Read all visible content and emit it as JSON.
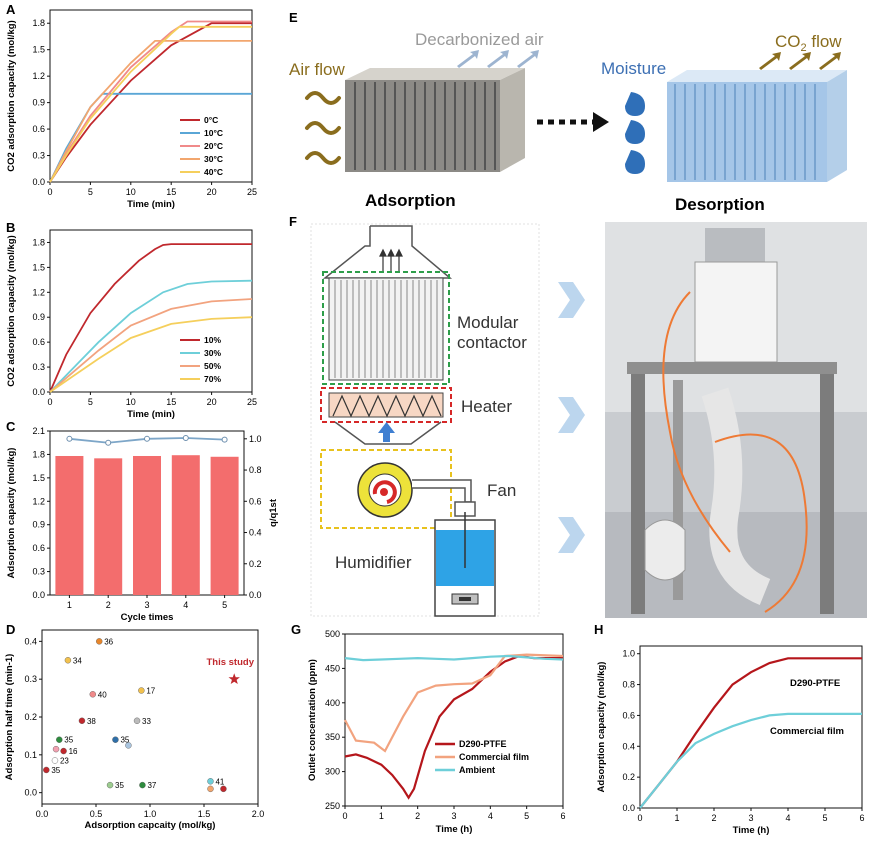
{
  "panel_labels": {
    "A": "A",
    "B": "B",
    "C": "C",
    "D": "D",
    "E": "E",
    "F": "F",
    "G": "G",
    "H": "H"
  },
  "colors": {
    "red": "#c0282d",
    "blue": "#5aa6d6",
    "pink": "#f08a8a",
    "orange": "#f2a66e",
    "yellow": "#f5cf5c",
    "cyan": "#6ecfd9",
    "bar": "#f36d6d",
    "line": "#7da6c8",
    "darkred": "#b5161b",
    "salmon": "#f2a37f"
  },
  "panelE": {
    "airflow": "Air flow",
    "decarbonized": "Decarbonized air",
    "moisture": "Moisture",
    "co2flow_prefix": "CO",
    "co2flow_sub": "2",
    "co2flow_suffix": " flow",
    "adsorption": "Adsorption",
    "desorption": "Desorption"
  },
  "panelF": {
    "modular": "Modular",
    "contactor": "contactor",
    "heater": "Heater",
    "fan": "Fan",
    "humidifier": "Humidifier"
  },
  "chart_data": [
    {
      "id": "A",
      "type": "line",
      "xlabel": "Time (min)",
      "ylabel": "CO2 adsorption capacity (mol/kg)",
      "xlim": [
        0,
        25
      ],
      "ylim": [
        0,
        1.95
      ],
      "xticks": [
        0,
        5,
        10,
        15,
        20,
        25
      ],
      "yticks": [
        0.0,
        0.3,
        0.6,
        0.9,
        1.2,
        1.5,
        1.8
      ],
      "series": [
        {
          "name": "0°C",
          "color": "#c0282d",
          "x": [
            0,
            2,
            5,
            10,
            15,
            20,
            25
          ],
          "y": [
            0,
            0.28,
            0.65,
            1.15,
            1.55,
            1.8,
            1.8
          ]
        },
        {
          "name": "10°C",
          "color": "#5aa6d6",
          "x": [
            0,
            2,
            5,
            6.5,
            25
          ],
          "y": [
            0,
            0.38,
            0.85,
            1.0,
            1.0
          ]
        },
        {
          "name": "20°C",
          "color": "#f08a8a",
          "x": [
            0,
            2,
            5,
            10,
            15,
            17,
            25
          ],
          "y": [
            0,
            0.32,
            0.75,
            1.3,
            1.7,
            1.82,
            1.82
          ]
        },
        {
          "name": "30°C",
          "color": "#f2a66e",
          "x": [
            0,
            2,
            5,
            10,
            13,
            25
          ],
          "y": [
            0,
            0.35,
            0.85,
            1.35,
            1.6,
            1.6
          ]
        },
        {
          "name": "40°C",
          "color": "#f5cf5c",
          "x": [
            0,
            2,
            5,
            10,
            15,
            16,
            25
          ],
          "y": [
            0,
            0.3,
            0.72,
            1.25,
            1.68,
            1.76,
            1.76
          ]
        }
      ]
    },
    {
      "id": "B",
      "type": "line",
      "xlabel": "Time (min)",
      "ylabel": "CO2 adsorption capacity (mol/kg)",
      "xlim": [
        0,
        25
      ],
      "ylim": [
        0,
        1.95
      ],
      "xticks": [
        0,
        5,
        10,
        15,
        20,
        25
      ],
      "yticks": [
        0.0,
        0.3,
        0.6,
        0.9,
        1.2,
        1.5,
        1.8
      ],
      "series": [
        {
          "name": "10%",
          "color": "#c0282d",
          "x": [
            0,
            2,
            5,
            8,
            11,
            13,
            14,
            15,
            25
          ],
          "y": [
            0,
            0.45,
            0.95,
            1.3,
            1.58,
            1.72,
            1.77,
            1.78,
            1.78
          ]
        },
        {
          "name": "30%",
          "color": "#6ecfd9",
          "x": [
            0,
            3,
            6,
            10,
            14,
            17,
            20,
            25
          ],
          "y": [
            0,
            0.3,
            0.6,
            0.95,
            1.2,
            1.3,
            1.33,
            1.34
          ]
        },
        {
          "name": "50%",
          "color": "#f2a37f",
          "x": [
            0,
            3,
            6,
            10,
            15,
            20,
            25
          ],
          "y": [
            0,
            0.25,
            0.5,
            0.8,
            1.0,
            1.09,
            1.12
          ]
        },
        {
          "name": "70%",
          "color": "#f5cf5c",
          "x": [
            0,
            3,
            6,
            10,
            15,
            20,
            25
          ],
          "y": [
            0,
            0.2,
            0.4,
            0.65,
            0.82,
            0.88,
            0.9
          ]
        }
      ]
    },
    {
      "id": "C",
      "type": "bar",
      "xlabel": "Cycle times",
      "ylabel": "Adsorption capacity (mol/kg)",
      "y2label": "q/q1st",
      "categories": [
        "1",
        "2",
        "3",
        "4",
        "5"
      ],
      "values": [
        1.78,
        1.75,
        1.78,
        1.79,
        1.77
      ],
      "ratio": [
        1.0,
        0.975,
        1.0,
        1.005,
        0.995
      ],
      "ylim": [
        0,
        2.1
      ],
      "y2lim": [
        0,
        1.05
      ],
      "yticks": [
        0.0,
        0.3,
        0.6,
        0.9,
        1.2,
        1.5,
        1.8,
        2.1
      ],
      "y2ticks": [
        0.0,
        0.2,
        0.4,
        0.6,
        0.8,
        1.0
      ]
    },
    {
      "id": "D",
      "type": "scatter",
      "xlabel": "Adsorption capcaity (mol/kg)",
      "ylabel": "Adsorption half time (min-1)",
      "xlim": [
        0,
        2.0
      ],
      "ylim": [
        -0.03,
        0.43
      ],
      "xticks": [
        0.0,
        0.5,
        1.0,
        1.5,
        2.0
      ],
      "yticks": [
        0.0,
        0.1,
        0.2,
        0.3,
        0.4
      ],
      "points": [
        {
          "label": "36",
          "x": 0.53,
          "y": 0.4,
          "color": "#e8862a"
        },
        {
          "label": "34",
          "x": 0.24,
          "y": 0.35,
          "color": "#f2c14e"
        },
        {
          "label": "17",
          "x": 0.92,
          "y": 0.27,
          "color": "#f2c14e"
        },
        {
          "label": "40",
          "x": 0.47,
          "y": 0.26,
          "color": "#f08a8a"
        },
        {
          "label": "38",
          "x": 0.37,
          "y": 0.19,
          "color": "#c0282d"
        },
        {
          "label": "33",
          "x": 0.88,
          "y": 0.19,
          "color": "#bbbbbb"
        },
        {
          "label": "35",
          "x": 0.16,
          "y": 0.14,
          "color": "#2e8b3e"
        },
        {
          "label": "35",
          "x": 0.68,
          "y": 0.14,
          "color": "#2f6fa8"
        },
        {
          "label": "",
          "x": 0.8,
          "y": 0.125,
          "color": "#a9c4de"
        },
        {
          "label": "16",
          "x": 0.2,
          "y": 0.11,
          "color": "#c0282d"
        },
        {
          "label": "",
          "x": 0.13,
          "y": 0.115,
          "color": "#f2a0b0"
        },
        {
          "label": "23",
          "x": 0.12,
          "y": 0.085,
          "color": "#ffffff"
        },
        {
          "label": "35",
          "x": 0.04,
          "y": 0.06,
          "color": "#c0282d"
        },
        {
          "label": "35",
          "x": 0.63,
          "y": 0.02,
          "color": "#9ccc8f"
        },
        {
          "label": "37",
          "x": 0.93,
          "y": 0.02,
          "color": "#2e8b3e"
        },
        {
          "label": "41",
          "x": 1.56,
          "y": 0.03,
          "color": "#6ecfd9"
        },
        {
          "label": "",
          "x": 1.56,
          "y": 0.01,
          "color": "#f2a66e"
        },
        {
          "label": "",
          "x": 1.68,
          "y": 0.01,
          "color": "#c0282d"
        }
      ],
      "highlight": {
        "label": "This study",
        "x": 1.78,
        "y": 0.3,
        "color": "#c0282d"
      }
    },
    {
      "id": "G",
      "type": "line",
      "xlabel": "Time (h)",
      "ylabel": "Outlet concentration (ppm)",
      "xlim": [
        0,
        6
      ],
      "ylim": [
        250,
        500
      ],
      "xticks": [
        0,
        1,
        2,
        3,
        4,
        5,
        6
      ],
      "yticks": [
        250,
        300,
        350,
        400,
        450,
        500
      ],
      "series": [
        {
          "name": "D290-PTFE",
          "color": "#b5161b",
          "x": [
            0,
            0.3,
            0.6,
            1.0,
            1.3,
            1.6,
            1.75,
            1.9,
            2.2,
            2.6,
            3.0,
            3.5,
            4.0,
            4.4,
            4.8,
            5.2,
            6.0
          ],
          "y": [
            322,
            325,
            320,
            310,
            295,
            275,
            262,
            275,
            330,
            380,
            405,
            420,
            445,
            460,
            468,
            465,
            465
          ]
        },
        {
          "name": "Commercial film",
          "color": "#f2a37f",
          "x": [
            0,
            0.3,
            0.8,
            1.1,
            1.3,
            1.6,
            2.0,
            2.5,
            3.0,
            3.5,
            4.0,
            4.4,
            5.0,
            6.0
          ],
          "y": [
            375,
            345,
            342,
            330,
            350,
            380,
            415,
            425,
            427,
            428,
            440,
            468,
            470,
            468
          ]
        },
        {
          "name": "Ambient",
          "color": "#6ecfd9",
          "x": [
            0,
            0.5,
            1,
            1.5,
            2,
            2.5,
            3,
            3.5,
            4,
            4.5,
            5,
            5.5,
            6
          ],
          "y": [
            465,
            462,
            463,
            464,
            465,
            464,
            463,
            465,
            467,
            468,
            466,
            464,
            463
          ]
        }
      ]
    },
    {
      "id": "H",
      "type": "line",
      "xlabel": "Time (h)",
      "ylabel": "Adsorption capacity (mol/kg)",
      "xlim": [
        0,
        6
      ],
      "ylim": [
        0,
        1.05
      ],
      "xticks": [
        0,
        1,
        2,
        3,
        4,
        5,
        6
      ],
      "yticks": [
        0.0,
        0.2,
        0.4,
        0.6,
        0.8,
        1.0
      ],
      "series": [
        {
          "name": "D290-PTFE",
          "color": "#b5161b",
          "x": [
            0,
            0.5,
            1.0,
            1.5,
            2.0,
            2.5,
            3.0,
            3.5,
            4.0,
            6.0
          ],
          "y": [
            0,
            0.15,
            0.3,
            0.48,
            0.65,
            0.8,
            0.88,
            0.94,
            0.97,
            0.97
          ]
        },
        {
          "name": "Commercial film",
          "color": "#6ecfd9",
          "x": [
            0,
            0.5,
            1.0,
            1.5,
            2.0,
            2.5,
            3.0,
            3.5,
            4.0,
            6.0
          ],
          "y": [
            0,
            0.15,
            0.3,
            0.42,
            0.48,
            0.53,
            0.57,
            0.6,
            0.61,
            0.61
          ]
        }
      ],
      "labels": [
        "D290-PTFE",
        "Commercial film"
      ]
    }
  ]
}
